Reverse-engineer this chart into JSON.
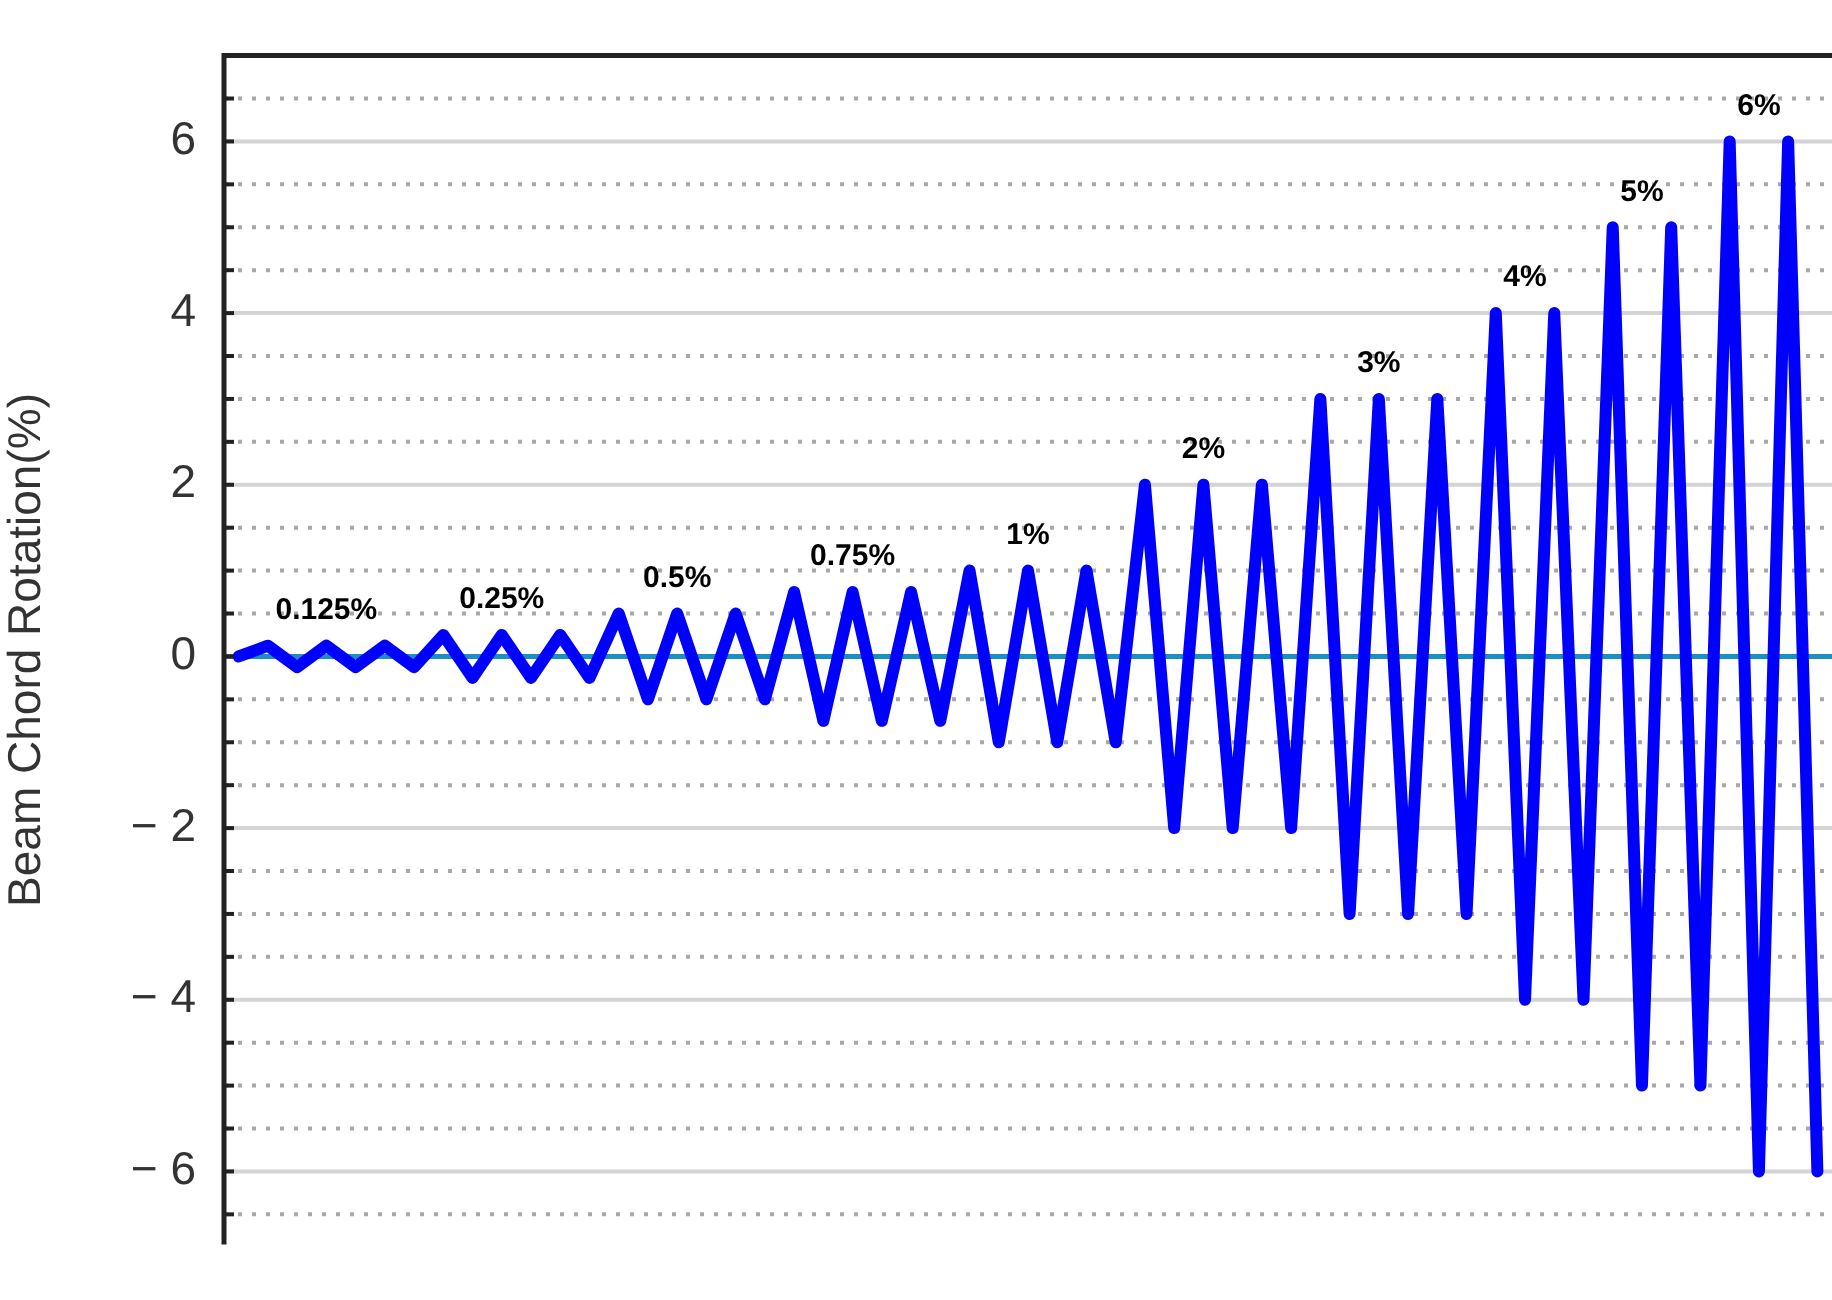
{
  "chart_data": {
    "type": "line",
    "ylabel": "Beam Chord Rotation(%)",
    "categories": [
      null,
      null,
      null,
      null,
      null,
      null,
      null,
      null,
      null,
      null,
      null,
      null,
      null,
      null,
      null,
      null,
      null,
      null,
      null,
      null,
      null,
      null,
      null,
      null,
      null,
      null,
      null,
      null,
      null,
      null,
      null,
      null,
      null,
      null,
      null,
      null,
      null,
      null,
      null,
      null,
      null,
      null,
      null,
      null,
      null,
      null,
      null,
      null,
      null,
      null,
      null,
      null,
      null,
      null,
      null
    ],
    "series": [
      {
        "color": "#0000ff",
        "values": [
          0,
          0.125,
          -0.125,
          0.125,
          -0.125,
          0.125,
          -0.125,
          0.25,
          -0.25,
          0.25,
          -0.25,
          0.25,
          -0.25,
          0.5,
          -0.5,
          0.5,
          -0.5,
          0.5,
          -0.5,
          0.75,
          -0.75,
          0.75,
          -0.75,
          0.75,
          -0.75,
          1,
          -1,
          1,
          -1,
          1,
          -1,
          2,
          -2,
          2,
          -2,
          2,
          -2,
          3,
          -3,
          3,
          -3,
          3,
          -3,
          4,
          -4,
          4,
          -4,
          5,
          -5,
          5,
          -5,
          6,
          -6,
          6,
          -6
        ]
      }
    ],
    "ylim": [
      -6.85,
      7
    ],
    "yticks": [
      {
        "value": -6.5,
        "label": null
      },
      {
        "value": -6,
        "label": "− 6"
      },
      {
        "value": -5.5,
        "label": null
      },
      {
        "value": -5,
        "label": null
      },
      {
        "value": -4.5,
        "label": null
      },
      {
        "value": -4,
        "label": "− 4"
      },
      {
        "value": -3.5,
        "label": null
      },
      {
        "value": -3,
        "label": null
      },
      {
        "value": -2.5,
        "label": null
      },
      {
        "value": -2,
        "label": "− 2"
      },
      {
        "value": -1.5,
        "label": null
      },
      {
        "value": -1,
        "label": null
      },
      {
        "value": -0.5,
        "label": null
      },
      0,
      {
        "value": 0.5,
        "label": null
      },
      {
        "value": 1,
        "label": null
      },
      {
        "value": 1.5,
        "label": null
      },
      2,
      {
        "value": 2.5,
        "label": null
      },
      {
        "value": 3,
        "label": null
      },
      {
        "value": 3.5,
        "label": null
      },
      4,
      {
        "value": 4.5,
        "label": null
      },
      {
        "value": 5,
        "label": null
      },
      {
        "value": 5.5,
        "label": null
      },
      6,
      {
        "value": 6.5,
        "label": null
      }
    ],
    "ref_lines": [
      {
        "axis": "y",
        "value": 0,
        "color": "#1a8fc0"
      }
    ],
    "annotations": [
      "0.125%",
      "0.25%",
      "0.5%",
      "0.75%",
      "1%",
      "2%",
      "3%",
      "4%",
      "5%",
      "6%"
    ],
    "grid": "y",
    "tick_labels": "y",
    "marker": "none",
    "line_style": "solid",
    "legend": false
  }
}
